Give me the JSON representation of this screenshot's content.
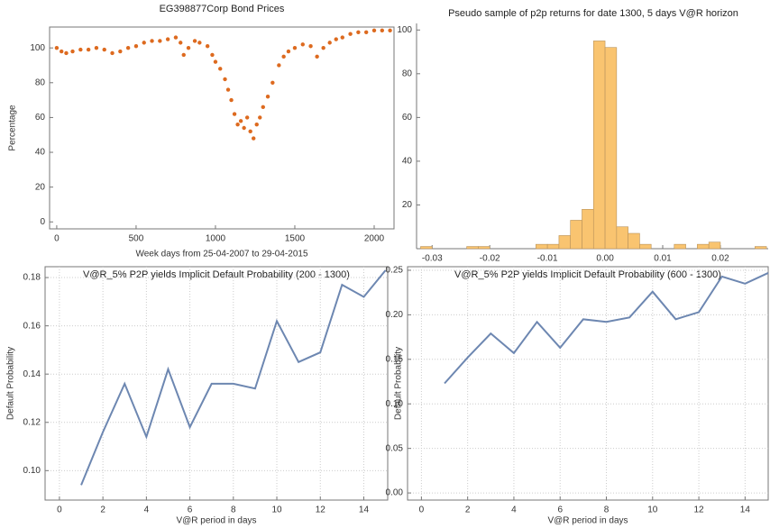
{
  "chart_data": [
    {
      "type": "scatter",
      "title": "EG398877Corp Bond Prices",
      "x_label": "Week days from 25-04-2007 to 29-04-2015",
      "y_label": "Percentage",
      "color": "#dd6a1f",
      "x": [
        0,
        30,
        60,
        100,
        150,
        200,
        250,
        300,
        350,
        400,
        450,
        500,
        550,
        600,
        650,
        700,
        750,
        780,
        800,
        830,
        870,
        900,
        950,
        980,
        1000,
        1030,
        1060,
        1080,
        1100,
        1120,
        1140,
        1160,
        1180,
        1200,
        1220,
        1240,
        1260,
        1280,
        1300,
        1330,
        1360,
        1400,
        1430,
        1460,
        1500,
        1550,
        1600,
        1640,
        1680,
        1720,
        1760,
        1800,
        1850,
        1900,
        1950,
        2000,
        2050,
        2100
      ],
      "values": [
        100,
        98,
        97,
        98,
        99,
        99,
        100,
        99,
        97,
        98,
        100,
        101,
        103,
        104,
        104,
        105,
        106,
        103,
        96,
        100,
        104,
        103,
        101,
        96,
        92,
        88,
        82,
        76,
        70,
        62,
        56,
        58,
        54,
        60,
        52,
        48,
        56,
        60,
        66,
        72,
        80,
        90,
        95,
        98,
        100,
        102,
        101,
        95,
        100,
        103,
        105,
        106,
        108,
        109,
        109,
        110,
        110,
        110
      ],
      "xlim": [
        -45,
        2125
      ],
      "ylim": [
        -4,
        112
      ],
      "xticks": [
        0,
        500,
        1000,
        1500,
        2000
      ],
      "yticks": [
        0,
        20,
        40,
        60,
        80,
        100
      ],
      "grid": false
    },
    {
      "type": "histogram",
      "title": "Pseudo sample of p2p returns for date 1300, 5 days V@R horizon",
      "color": "#f9c470",
      "bins": [
        -0.032,
        -0.03,
        -0.028,
        -0.026,
        -0.024,
        -0.022,
        -0.02,
        -0.018,
        -0.016,
        -0.014,
        -0.012,
        -0.01,
        -0.008,
        -0.006,
        -0.004,
        -0.002,
        0,
        0.002,
        0.004,
        0.006,
        0.008,
        0.01,
        0.012,
        0.014,
        0.016,
        0.018,
        0.02,
        0.022,
        0.024,
        0.026,
        0.028
      ],
      "values": [
        1,
        0,
        0,
        0,
        1,
        1,
        0,
        0,
        0,
        0,
        2,
        2,
        6,
        13,
        18,
        95,
        92,
        10,
        7,
        2,
        0,
        0,
        2,
        0,
        2,
        3,
        0,
        0,
        0,
        1
      ],
      "xlim": [
        -0.0327,
        0.0283
      ],
      "ylim": [
        0,
        103
      ],
      "xticks": [
        -0.03,
        -0.02,
        -0.01,
        {
          "value": 0,
          "label": "0.00"
        },
        0.01,
        0.02
      ],
      "yticks": [
        20,
        40,
        60,
        80,
        100
      ],
      "grid": false
    },
    {
      "type": "line",
      "title": "V@R_5% P2P yields Implicit Default Probability (200 - 1300)",
      "x_label": "V@R period in days",
      "y_label": "Default Probability",
      "color": "#6d87b1",
      "x": [
        1,
        2,
        3,
        4,
        5,
        6,
        7,
        8,
        9,
        10,
        11,
        12,
        13,
        14,
        15
      ],
      "values": [
        0.094,
        0.116,
        0.136,
        0.114,
        0.142,
        0.118,
        0.136,
        0.136,
        0.134,
        0.162,
        0.145,
        0.149,
        0.177,
        0.172,
        0.183
      ],
      "xlim": [
        -0.66,
        15.1
      ],
      "ylim": [
        0.0878,
        0.1845
      ],
      "xticks": [
        0,
        2,
        4,
        6,
        8,
        10,
        12,
        14
      ],
      "yticks": [
        {
          "value": 0.1,
          "label": "0.10"
        },
        0.12,
        0.14,
        0.16,
        0.18
      ],
      "grid": true
    },
    {
      "type": "line",
      "title": "V@R_5% P2P yields Implicit Default Probability (600 - 1300)",
      "x_label": "V@R period in days",
      "y_label": "Default Probability",
      "color": "#6d87b1",
      "x": [
        1,
        2,
        3,
        4,
        5,
        6,
        7,
        8,
        9,
        10,
        11,
        12,
        13,
        14,
        15
      ],
      "values": [
        0.123,
        0.152,
        0.179,
        0.157,
        0.192,
        0.163,
        0.195,
        0.192,
        0.197,
        0.226,
        0.195,
        0.203,
        0.243,
        0.235,
        0.247
      ],
      "xlim": [
        -0.6,
        15
      ],
      "ylim": [
        -0.008,
        0.254
      ],
      "xticks": [
        0,
        2,
        4,
        6,
        8,
        10,
        12,
        14
      ],
      "yticks": [
        {
          "value": 0,
          "label": "0.00"
        },
        0.05,
        {
          "value": 0.1,
          "label": "0.10"
        },
        0.15,
        {
          "value": 0.2,
          "label": "0.20"
        },
        0.25
      ],
      "grid": true
    }
  ]
}
